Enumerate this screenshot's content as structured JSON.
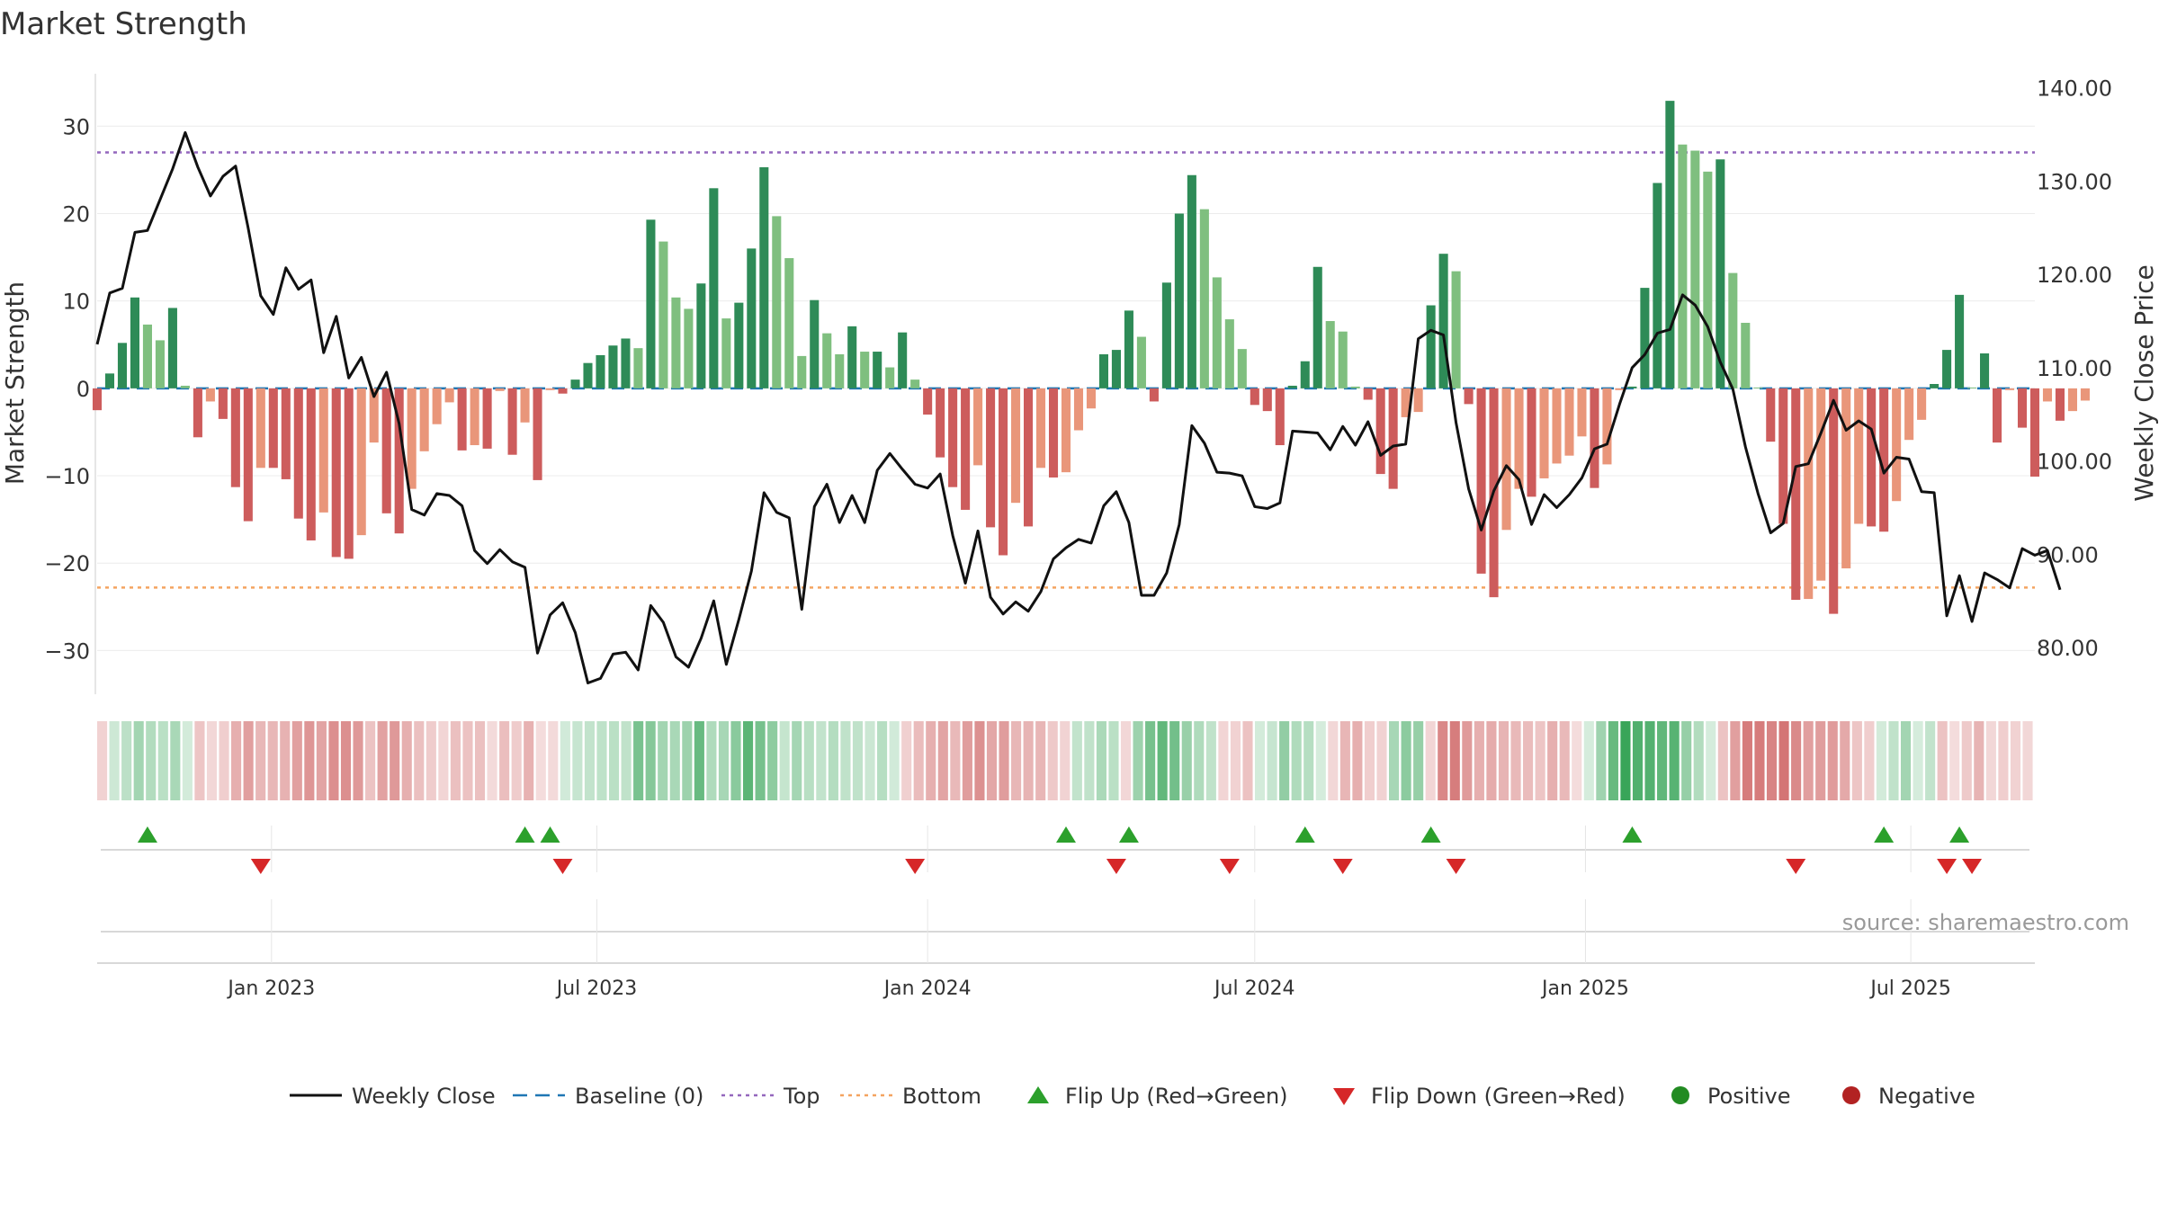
{
  "chart_data": {
    "type": "bar",
    "title": "Market Strength",
    "ylabel_left": "Market Strength",
    "ylabel_right": "Weekly Close Price",
    "ylim_left": [
      -35,
      36
    ],
    "ylim_right": [
      75,
      141.5
    ],
    "yticks_left": [
      30,
      20,
      10,
      0,
      -10,
      -20,
      -30
    ],
    "yticks_left_labels": [
      "30",
      "20",
      "10",
      "0",
      "−10",
      "−20",
      "−30"
    ],
    "yticks_right": [
      140,
      130,
      120,
      110,
      100,
      90,
      80
    ],
    "yticks_right_labels": [
      "140.00",
      "130.00",
      "120.00",
      "110.00",
      "100.00",
      "90.00",
      "80.00"
    ],
    "x_range": [
      "2022-09-26",
      "2025-09-08"
    ],
    "x_ticks": [
      {
        "date": "2023-01-01",
        "label": "Jan 2023"
      },
      {
        "date": "2023-07-01",
        "label": "Jul 2023"
      },
      {
        "date": "2024-01-01",
        "label": "Jan 2024"
      },
      {
        "date": "2024-07-01",
        "label": "Jul 2024"
      },
      {
        "date": "2025-01-01",
        "label": "Jan 2025"
      },
      {
        "date": "2025-07-01",
        "label": "Jul 2025"
      }
    ],
    "start_week": "2022-09-26",
    "week_step_days": 7,
    "strength": [
      -2.5,
      1.7,
      5.2,
      10.4,
      7.3,
      5.5,
      9.2,
      0.3,
      -5.6,
      -1.5,
      -3.5,
      -11.3,
      -15.2,
      -9.1,
      -9.1,
      -10.4,
      -14.9,
      -17.4,
      -14.2,
      -19.3,
      -19.5,
      -16.8,
      -6.2,
      -14.3,
      -16.6,
      -11.5,
      -7.2,
      -4.1,
      -1.6,
      -7.1,
      -6.5,
      -6.9,
      -0.3,
      -7.6,
      -3.9,
      -10.5,
      -0.2,
      -0.6,
      1.0,
      2.9,
      3.8,
      4.9,
      5.7,
      4.6,
      19.3,
      16.8,
      10.4,
      9.1,
      12.0,
      22.9,
      8.0,
      9.8,
      16.0,
      25.3,
      19.7,
      14.9,
      3.7,
      10.1,
      6.3,
      3.9,
      7.1,
      4.2,
      4.2,
      2.4,
      6.4,
      1.0,
      -3.0,
      -7.9,
      -11.3,
      -13.9,
      -8.8,
      -15.9,
      -19.1,
      -13.1,
      -15.8,
      -9.1,
      -10.2,
      -9.6,
      -4.8,
      -2.3,
      3.9,
      4.4,
      8.9,
      5.9,
      -1.5,
      12.1,
      20.0,
      24.4,
      20.5,
      12.7,
      7.9,
      4.5,
      -1.9,
      -2.6,
      -6.5,
      0.3,
      3.1,
      13.9,
      7.7,
      6.5,
      0.2,
      -1.3,
      -9.8,
      -11.5,
      -3.3,
      -2.7,
      9.5,
      15.4,
      13.4,
      -1.8,
      -21.2,
      -23.9,
      -16.2,
      -11.5,
      -12.4,
      -10.3,
      -8.6,
      -7.7,
      -5.5,
      -11.4,
      -8.7,
      -0.2,
      0.2,
      11.5,
      23.5,
      32.9,
      27.9,
      27.2,
      24.8,
      26.2,
      13.2,
      7.5,
      0.1,
      -6.1,
      -15.5,
      -24.2,
      -24.1,
      -22.0,
      -25.8,
      -20.6,
      -15.5,
      -15.8,
      -16.4,
      -12.9,
      -5.9,
      -3.6,
      0.5,
      4.4,
      10.7,
      0.1,
      4.0,
      -6.2,
      -0.2,
      -4.5,
      -10.1,
      -1.5,
      -3.7,
      -2.6,
      -1.4
    ],
    "weekly_close": [
      112.5,
      118.0,
      118.5,
      124.5,
      124.7,
      128.0,
      131.3,
      135.2,
      131.5,
      128.4,
      130.5,
      131.6,
      125.0,
      117.7,
      115.7,
      120.7,
      118.4,
      119.4,
      111.6,
      115.5,
      108.9,
      111.1,
      106.9,
      109.5,
      104.0,
      94.8,
      94.2,
      96.5,
      96.3,
      95.2,
      90.4,
      89.0,
      90.5,
      89.2,
      88.6,
      79.4,
      83.5,
      84.8,
      81.6,
      76.2,
      76.7,
      79.3,
      79.5,
      77.6,
      84.5,
      82.7,
      79.0,
      77.9,
      81.0,
      85.0,
      78.2,
      83.0,
      88.2,
      96.6,
      94.5,
      93.9,
      84.1,
      95.1,
      97.5,
      93.4,
      96.3,
      93.4,
      99.0,
      100.8,
      99.1,
      97.5,
      97.1,
      98.6,
      92.0,
      86.9,
      92.5,
      85.4,
      83.6,
      84.9,
      83.9,
      86.0,
      89.5,
      90.7,
      91.6,
      91.2,
      95.2,
      96.7,
      93.4,
      85.6,
      85.6,
      88.0,
      93.2,
      103.8,
      101.9,
      98.8,
      98.7,
      98.4,
      95.1,
      94.9,
      95.5,
      103.2,
      103.1,
      103.0,
      101.2,
      103.7,
      101.7,
      104.2,
      100.6,
      101.6,
      101.8,
      113.1,
      114.0,
      113.5,
      104.1,
      97.0,
      92.6,
      96.8,
      99.5,
      98.0,
      93.2,
      96.4,
      95.0,
      96.4,
      98.2,
      101.3,
      101.8,
      106.1,
      110.0,
      111.4,
      113.7,
      114.1,
      117.8,
      116.7,
      114.4,
      110.6,
      107.7,
      101.5,
      96.5,
      92.3,
      93.3,
      99.4,
      99.7,
      103.0,
      106.5,
      103.3,
      104.3,
      103.4,
      98.7,
      100.4,
      100.2,
      96.7,
      96.6,
      83.4,
      87.7,
      82.8,
      88.0,
      87.3,
      86.4,
      90.6,
      89.9,
      90.4,
      86.2
    ],
    "baseline": 0,
    "top_line": 27,
    "bottom_line": -22.8,
    "flip_up_dates": [
      "2022-10-24",
      "2023-05-22",
      "2023-06-05",
      "2024-03-18",
      "2024-04-22",
      "2024-07-29",
      "2024-10-07",
      "2025-01-27",
      "2025-06-16",
      "2025-07-28"
    ],
    "flip_down_dates": [
      "2022-12-26",
      "2023-06-12",
      "2023-12-25",
      "2024-04-15",
      "2024-06-17",
      "2024-08-19",
      "2024-10-21",
      "2025-04-28",
      "2025-07-21",
      "2025-08-04"
    ],
    "legend": {
      "placement": "bottom-center",
      "entries": [
        {
          "label": "Weekly Close",
          "kind": "line"
        },
        {
          "label": "Baseline (0)",
          "kind": "dash"
        },
        {
          "label": "Top",
          "kind": "dot"
        },
        {
          "label": "Bottom",
          "kind": "dot"
        },
        {
          "label": "Flip Up (Red→Green)",
          "kind": "tri-up"
        },
        {
          "label": "Flip Down (Green→Red)",
          "kind": "tri-down"
        },
        {
          "label": "Positive",
          "kind": "circle"
        },
        {
          "label": "Negative",
          "kind": "circle"
        }
      ]
    },
    "source": "source: sharemaestro.com",
    "grid": true
  },
  "colors": {
    "pos_dark": "#2e8b57",
    "pos_light": "#7fbf7f",
    "neg_dark": "#cd5c5c",
    "neg_light": "#e9967a",
    "close_line": "#111111",
    "baseline": "#1f77b4",
    "top": "#9467bd",
    "bottom": "#f4a460",
    "flip_up": "#2ca02c",
    "flip_down": "#d62728",
    "positive": "#228b22",
    "negative": "#b22222"
  }
}
